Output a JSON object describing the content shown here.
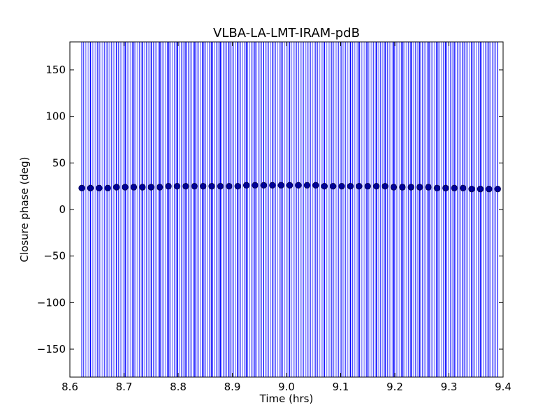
{
  "chart_data": {
    "type": "scatter",
    "title": "VLBA-LA-LMT-IRAM-pdB",
    "xlabel": "Time (hrs)",
    "ylabel": "Closure phase (deg)",
    "xlim": [
      8.6,
      9.4
    ],
    "ylim": [
      -180,
      180
    ],
    "xticks": [
      8.6,
      8.7,
      8.8,
      8.9,
      9.0,
      9.1,
      9.2,
      9.3,
      9.4
    ],
    "xtick_labels": [
      "8.6",
      "8.7",
      "8.8",
      "8.9",
      "9.0",
      "9.1",
      "9.2",
      "9.3",
      "9.4"
    ],
    "yticks": [
      -150,
      -100,
      -50,
      0,
      50,
      100,
      150
    ],
    "ytick_labels": [
      "−150",
      "−100",
      "−50",
      "0",
      "50",
      "100",
      "150"
    ],
    "grid": false,
    "legend": "none",
    "series": [
      {
        "marker": "circle",
        "color": "#0000ff",
        "error_bars": "vertical, spanning full y-range",
        "x": [
          8.622,
          8.638,
          8.654,
          8.67,
          8.686,
          8.702,
          8.718,
          8.734,
          8.75,
          8.766,
          8.782,
          8.798,
          8.814,
          8.83,
          8.846,
          8.862,
          8.878,
          8.894,
          8.91,
          8.926,
          8.942,
          8.958,
          8.974,
          8.99,
          9.006,
          9.022,
          9.038,
          9.054,
          9.07,
          9.086,
          9.102,
          9.118,
          9.134,
          9.15,
          9.166,
          9.182,
          9.198,
          9.214,
          9.23,
          9.246,
          9.262,
          9.278,
          9.294,
          9.31,
          9.326,
          9.342,
          9.358,
          9.374,
          9.39
        ],
        "y": [
          23,
          23,
          23,
          23,
          24,
          24,
          24,
          24,
          24,
          24,
          25,
          25,
          25,
          25,
          25,
          25,
          25,
          25,
          25,
          26,
          26,
          26,
          26,
          26,
          26,
          26,
          26,
          26,
          25,
          25,
          25,
          25,
          25,
          25,
          25,
          25,
          24,
          24,
          24,
          24,
          24,
          23,
          23,
          23,
          23,
          22,
          22,
          22,
          22
        ]
      }
    ]
  }
}
